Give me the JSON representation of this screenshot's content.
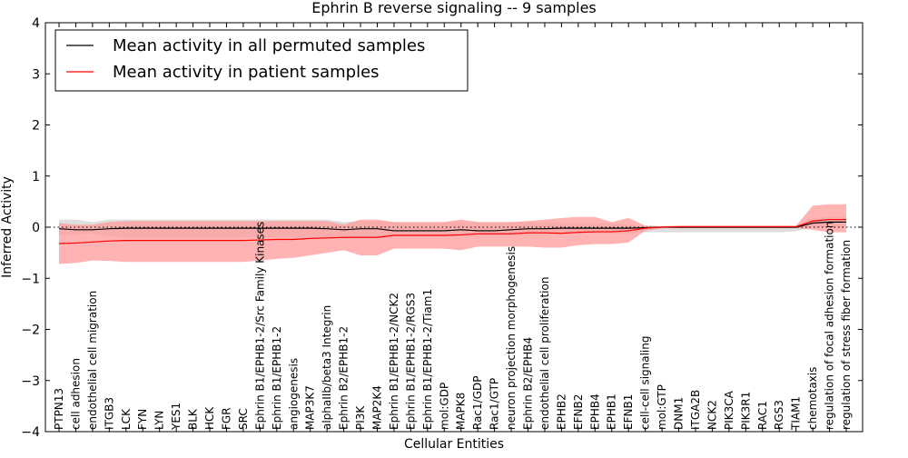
{
  "chart_data": {
    "type": "line",
    "title": "Ephrin B reverse signaling -- 9 samples",
    "xlabel": "Cellular Entities",
    "ylabel": "Inferred Activity",
    "ylim": [
      -4,
      4
    ],
    "yticks": [
      -4,
      -3,
      -2,
      -1,
      0,
      1,
      2,
      3,
      4
    ],
    "ytick_labels": [
      "−4",
      "−3",
      "−2",
      "−1",
      "0",
      "1",
      "2",
      "3",
      "4"
    ],
    "categories": [
      "PTPN13",
      "cell adhesion",
      "endothelial cell migration",
      "ITGB3",
      "LCK",
      "FYN",
      "LYN",
      "YES1",
      "BLK",
      "HCK",
      "FGR",
      "SRC",
      "Ephrin B1/EPHB1-2/Src Family Kinases",
      "Ephrin B1/EPHB1-2",
      "angiogenesis",
      "MAP3K7",
      "alphaIIb/beta3 Integrin",
      "Ephrin B2/EPHB1-2",
      "PI3K",
      "MAP2K4",
      "Ephrin B1/EPHB1-2/NCK2",
      "Ephrin B1/EPHB1-2/RGS3",
      "Ephrin B1/EPHB1-2/Tiam1",
      "mol:GDP",
      "MAPK8",
      "Rac1/GDP",
      "Rac1/GTP",
      "neuron projection morphogenesis",
      "Ephrin B2/EPHB4",
      "endothelial cell proliferation",
      "EPHB2",
      "EFNB2",
      "EPHB4",
      "EPHB1",
      "EFNB1",
      "cell-cell signaling",
      "mol:GTP",
      "DNM1",
      "ITGA2B",
      "NCK2",
      "PIK3CA",
      "PIK3R1",
      "RAC1",
      "RGS3",
      "TIAM1",
      "chemotaxis",
      "regulation of focal adhesion formation",
      "regulation of stress fiber formation"
    ],
    "series": [
      {
        "name": "Mean activity in all permuted samples",
        "color": "#000000",
        "band_color": "#c8c8c8",
        "values": [
          -0.03,
          -0.05,
          -0.05,
          -0.03,
          -0.02,
          -0.02,
          -0.02,
          -0.02,
          -0.02,
          -0.02,
          -0.02,
          -0.02,
          -0.02,
          -0.02,
          -0.02,
          -0.02,
          -0.03,
          -0.05,
          -0.03,
          -0.03,
          -0.07,
          -0.07,
          -0.07,
          -0.07,
          -0.05,
          -0.07,
          -0.07,
          -0.05,
          -0.03,
          -0.03,
          -0.02,
          -0.02,
          -0.02,
          -0.02,
          -0.02,
          -0.01,
          0,
          0,
          0,
          0,
          0,
          0,
          0,
          0,
          0,
          0.08,
          0.1,
          0.1
        ],
        "upper": [
          0.15,
          0.15,
          0.1,
          0.15,
          0.15,
          0.15,
          0.15,
          0.15,
          0.15,
          0.15,
          0.15,
          0.15,
          0.15,
          0.15,
          0.15,
          0.15,
          0.15,
          0.1,
          0.12,
          0.12,
          0.1,
          0.1,
          0.1,
          0.1,
          0.1,
          0.1,
          0.1,
          0.1,
          0.1,
          0.1,
          0.08,
          0.08,
          0.08,
          0.08,
          0.05,
          0.03,
          0.02,
          0.02,
          0.02,
          0.02,
          0.02,
          0.02,
          0.02,
          0.02,
          0.02,
          0.18,
          0.2,
          0.2
        ],
        "lower": [
          -0.15,
          -0.15,
          -0.12,
          -0.18,
          -0.2,
          -0.2,
          -0.2,
          -0.2,
          -0.2,
          -0.2,
          -0.2,
          -0.2,
          -0.2,
          -0.2,
          -0.2,
          -0.2,
          -0.2,
          -0.18,
          -0.18,
          -0.18,
          -0.18,
          -0.18,
          -0.18,
          -0.18,
          -0.18,
          -0.18,
          -0.18,
          -0.15,
          -0.15,
          -0.15,
          -0.12,
          -0.12,
          -0.12,
          -0.12,
          -0.12,
          -0.1,
          -0.1,
          -0.1,
          -0.1,
          -0.1,
          -0.1,
          -0.1,
          -0.1,
          -0.1,
          -0.08,
          0,
          0,
          0
        ]
      },
      {
        "name": "Mean activity in patient samples",
        "color": "#ff0000",
        "band_color": "#ff9a9a",
        "values": [
          -0.32,
          -0.31,
          -0.29,
          -0.27,
          -0.26,
          -0.26,
          -0.26,
          -0.26,
          -0.26,
          -0.26,
          -0.26,
          -0.26,
          -0.25,
          -0.24,
          -0.24,
          -0.22,
          -0.21,
          -0.2,
          -0.2,
          -0.2,
          -0.16,
          -0.16,
          -0.16,
          -0.16,
          -0.15,
          -0.13,
          -0.13,
          -0.13,
          -0.11,
          -0.11,
          -0.12,
          -0.1,
          -0.09,
          -0.09,
          -0.07,
          -0.02,
          0,
          0.01,
          0.01,
          0.01,
          0.01,
          0.01,
          0.01,
          0.01,
          0.01,
          0.12,
          0.15,
          0.15
        ],
        "upper": [
          0.08,
          0.05,
          0.05,
          0.1,
          0.12,
          0.12,
          0.12,
          0.12,
          0.12,
          0.12,
          0.12,
          0.12,
          0.12,
          0.12,
          0.12,
          0.12,
          0.12,
          0.05,
          0.15,
          0.15,
          0.1,
          0.1,
          0.1,
          0.1,
          0.15,
          0.1,
          0.1,
          0.1,
          0.12,
          0.15,
          0.18,
          0.2,
          0.2,
          0.1,
          0.18,
          0.03,
          0.02,
          0.03,
          0.03,
          0.03,
          0.03,
          0.03,
          0.03,
          0.03,
          0.03,
          0.42,
          0.45,
          0.45
        ],
        "lower": [
          -0.72,
          -0.7,
          -0.65,
          -0.66,
          -0.68,
          -0.68,
          -0.68,
          -0.68,
          -0.68,
          -0.68,
          -0.68,
          -0.68,
          -0.65,
          -0.62,
          -0.6,
          -0.55,
          -0.5,
          -0.45,
          -0.55,
          -0.55,
          -0.42,
          -0.42,
          -0.42,
          -0.42,
          -0.45,
          -0.38,
          -0.38,
          -0.38,
          -0.38,
          -0.4,
          -0.4,
          -0.35,
          -0.33,
          -0.33,
          -0.3,
          -0.07,
          -0.02,
          -0.02,
          -0.02,
          -0.02,
          -0.02,
          -0.02,
          -0.02,
          -0.02,
          -0.02,
          -0.05,
          -0.1,
          -0.1
        ]
      }
    ],
    "baseline": 0,
    "legend_position": "upper-left",
    "grid": false
  }
}
